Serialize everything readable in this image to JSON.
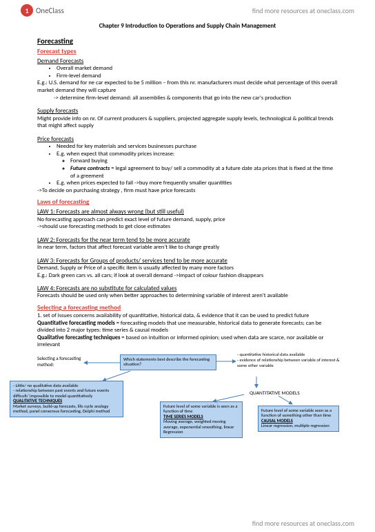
{
  "header": {
    "logo_letter": "1",
    "logo_text": "OneClass",
    "tagline": "find more resources at oneclass.com"
  },
  "title": "Chapter 9 Introduction to Operations and Supply Chain Management",
  "h_forecasting": "Forecasting",
  "h_forecast_types": "Forecast types",
  "h_demand": "Demand Forecasts",
  "demand_b1": "Overall market demand",
  "demand_b2": "Firm-level demand",
  "demand_eg1": "E.g.: U.S. demand for ne car expected to be 5 million – from this nr. manufacturers must decide what percentage of this overall market demand they will capture",
  "demand_eg2": "-> determine firm-level demand: all assemblies & components that go into the new car's production",
  "h_supply": "Supply forecasts",
  "supply_p": "Might provide info on nr. Of current producers & suppliers, projected aggregate supply levels, technological & political trends that might affect supply",
  "h_price": "Price forecasts",
  "price_b1": "Needed for key materials and services businesses purchase",
  "price_b2": "E.g. when expect that commodity prices increase:",
  "price_b2a": "Forward buying",
  "price_b2b_label": "Future contracts",
  "price_b2b_rest": " = legal agreement to buy/ sell a commodity at a future date ata prices that is fixed at the time of a greement",
  "price_b3": "E.g. when prices expected to fall ->buy more frequently smaller quantities",
  "price_p": "->To decide on purchasing strategy , firm must have price forecasts",
  "h_laws": "Laws of forecasting",
  "law1_h": "LAW 1: Forecasts are almost always wrong (but still useful)",
  "law1_p1": "No forecasting approach can predict exact level of future demand, supply, price",
  "law1_p2": "->should use forecasting methods to get close estimates",
  "law2_h": "LAW 2: Forecasts for the near term tend to be more accurate",
  "law2_p": "In near term, factors that affect forecast variable aren't like to change greatly",
  "law3_h": "LAW 3: Forecasts for Groups of products/ services tend to be more accurate",
  "law3_p1": "Demand, Supply or Price of a specific item is usually affected by many more factors",
  "law3_p2": "E.g.: Dark green cars vs. all cars; if look at overall demand ->impact of colour fashion disappears",
  "law4_h": "LAW 4: Forecasts are no substitute for calculated values",
  "law4_p": "Forecasts should be used only when better approaches to determining variable of interest aren't available",
  "h_selecting": "Selecting a forecasting method",
  "sel_p1": "1. set of issues concerns availability of quantitative, historical data, & evidence that it can be used to predict future",
  "sel_p2a": "Quantitative forecasting models",
  "sel_p2b": " = forecasting models that use measurable, historical data to generate forecasts; can be divided into 2 major types: time series & causal models",
  "sel_p3a": "Qualitative forecasting techniques",
  "sel_p3b": " = based on intuition or informed opinion; used when data are scarce, nor available or irrelevant",
  "diagram": {
    "sel_label": "Selecting a forecasting method:",
    "q_box": "Which statements best describe the forecasting situation?",
    "right_note": "- quantitative historical data available\n- evidence of relationship between variable of interest & some other variable",
    "qual_box_lines": [
      "- Little/ no qualitative data available",
      "- relationship between past events and future events difficult/ impossible to model quantitatively",
      "QUALITATIVE TECHNIQUES",
      "Market surveys, build-up forecasts, life cycle analogy method, panel consensus forecasting, Delphi method"
    ],
    "quant_label": "QUANTITATIVE MODELS",
    "ts_box_lines": [
      "Future level of some variable is seen as a function of time",
      "TIME SERIES MODELS",
      "Moving average, weighted moving average, exponential smoothing, linear Regression"
    ],
    "causal_box_lines": [
      "Future level of some variable seen as a function of something other than time",
      "CAUSAL MODELS",
      "Linear regression, multiple regression"
    ],
    "box_bg": "#b8d4f0",
    "box_border": "#4a7fb5",
    "arrow_color": "#4a7fb5"
  },
  "footer": "find more resources at oneclass.com"
}
